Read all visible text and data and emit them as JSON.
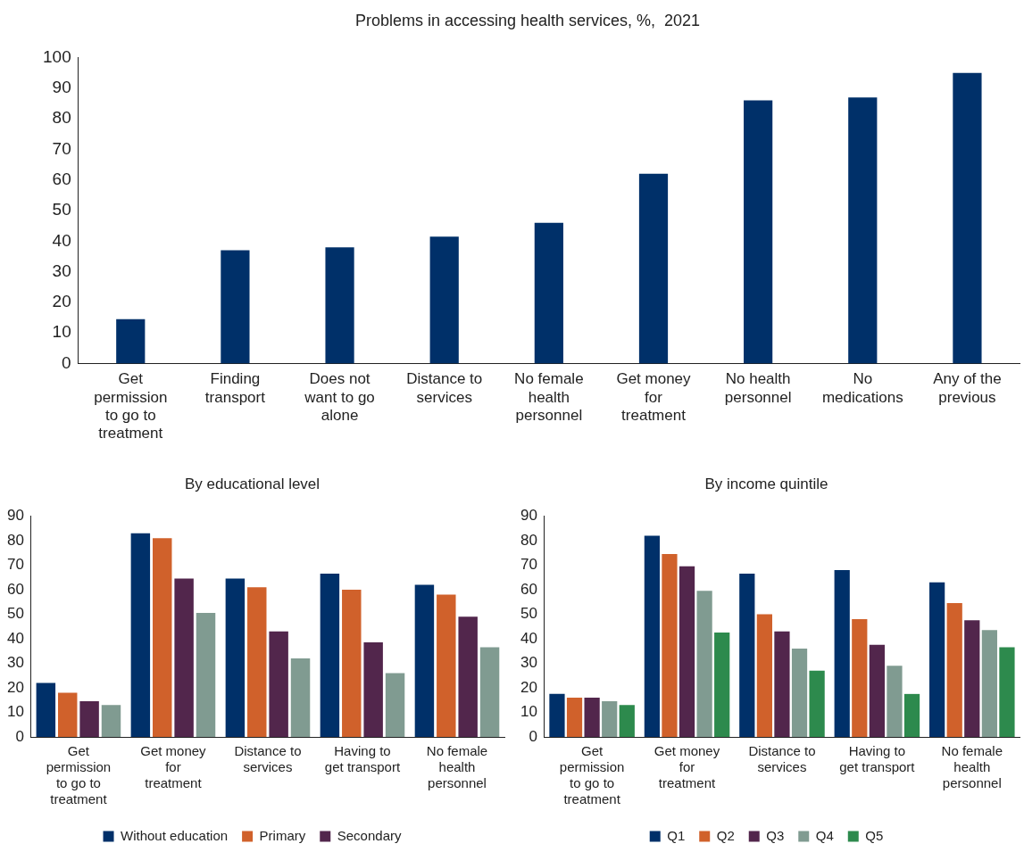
{
  "chart_data": [
    {
      "type": "bar",
      "title": "Problems in accessing health services, %,  2021",
      "categories": [
        "Get permission to go to treatment",
        "Finding transport",
        "Does not want to go alone",
        "Distance to services",
        "No female health personnel",
        "Get money for treatment",
        "No health personnel",
        "No medications",
        "Any of the previous"
      ],
      "values": [
        14.5,
        37,
        38,
        41.5,
        46,
        62,
        86,
        87,
        95
      ],
      "color": "#003069",
      "ylim": [
        0,
        100
      ],
      "yticks": [
        0,
        10,
        20,
        30,
        40,
        50,
        60,
        70,
        80,
        90,
        100
      ],
      "grid": false
    },
    {
      "type": "bar",
      "title": "By educational level",
      "categories": [
        "Get permission to go to treatment",
        "Get money for treatment",
        "Distance to services",
        "Having to get transport",
        "No female health personnel"
      ],
      "series": [
        {
          "name": "Without education",
          "color": "#003069",
          "values": [
            22,
            83,
            64.5,
            66.5,
            62
          ]
        },
        {
          "name": "Primary",
          "color": "#d0612b",
          "values": [
            18,
            81,
            61,
            60,
            58
          ]
        },
        {
          "name": "Secondary",
          "color": "#52264c",
          "values": [
            14.5,
            64.5,
            43,
            38.5,
            49
          ]
        },
        {
          "color": "#809b91",
          "values": [
            13,
            50.5,
            32,
            26,
            36.5
          ]
        }
      ],
      "ylim": [
        0,
        90
      ],
      "yticks": [
        0,
        10,
        20,
        30,
        40,
        50,
        60,
        70,
        80,
        90
      ],
      "grid": false,
      "legend": "bottom"
    },
    {
      "type": "bar",
      "title": "By income quintile",
      "categories": [
        "Get permission to go to treatment",
        "Get money for treatment",
        "Distance to services",
        "Having to get transport",
        "No female health personnel"
      ],
      "series": [
        {
          "name": "Q1",
          "color": "#003069",
          "values": [
            17.5,
            82,
            66.5,
            68,
            63
          ]
        },
        {
          "name": "Q2",
          "color": "#d0612b",
          "values": [
            16,
            74.5,
            50,
            48,
            54.5
          ]
        },
        {
          "name": "Q3",
          "color": "#52264c",
          "values": [
            16,
            69.5,
            43,
            37.5,
            47.5
          ]
        },
        {
          "name": "Q4",
          "color": "#809b91",
          "values": [
            14.5,
            59.5,
            36,
            29,
            43.5
          ]
        },
        {
          "name": "Q5",
          "color": "#2d8a4d",
          "values": [
            13,
            42.5,
            27,
            17.5,
            36.5
          ]
        }
      ],
      "ylim": [
        0,
        90
      ],
      "yticks": [
        0,
        10,
        20,
        30,
        40,
        50,
        60,
        70,
        80,
        90
      ],
      "grid": false,
      "legend": "bottom"
    }
  ]
}
